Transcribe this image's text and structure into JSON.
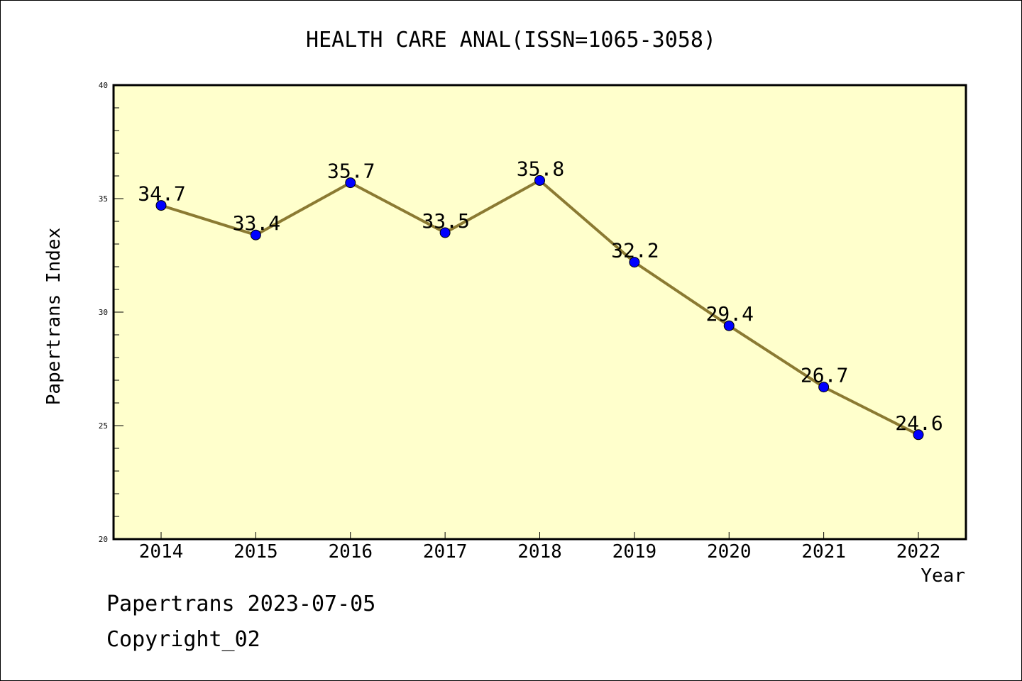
{
  "chart_data": {
    "type": "line",
    "title": "HEALTH CARE ANAL(ISSN=1065-3058)",
    "xlabel": "Year",
    "ylabel": "Papertrans Index",
    "categories": [
      "2014",
      "2015",
      "2016",
      "2017",
      "2018",
      "2019",
      "2020",
      "2021",
      "2022"
    ],
    "series": [
      {
        "values": [
          34.7,
          33.4,
          35.7,
          33.5,
          35.8,
          32.2,
          29.4,
          26.7,
          24.6
        ]
      }
    ],
    "data_labels": [
      "34.7",
      "33.4",
      "35.7",
      "33.5",
      "35.8",
      "32.2",
      "29.4",
      "26.7",
      "24.6"
    ],
    "ylim": [
      20,
      40
    ],
    "yticks": [
      "20",
      "25",
      "30",
      "35",
      "40"
    ],
    "grid": false,
    "colors": {
      "plot_background": "#ffffcc",
      "line": "#8b7a32",
      "marker": "#0000ff"
    }
  },
  "footer": {
    "line1": "Papertrans 2023-07-05",
    "line2": "Copyright_02"
  }
}
